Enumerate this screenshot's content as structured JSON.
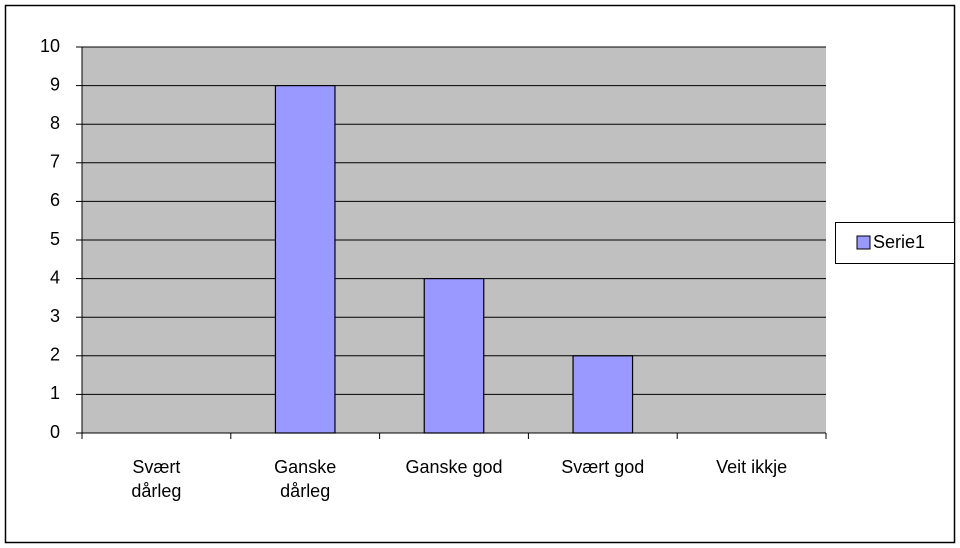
{
  "chart_data": {
    "type": "bar",
    "categories": [
      "Svært\ndårleg",
      "Ganske\ndårleg",
      "Ganske god",
      "Svært god",
      "Veit ikkje"
    ],
    "series": [
      {
        "name": "Serie1",
        "color": "#9999ff",
        "values": [
          0,
          9,
          4,
          2,
          0
        ]
      }
    ],
    "ylim": [
      0,
      10
    ],
    "yticks": [
      0,
      1,
      2,
      3,
      4,
      5,
      6,
      7,
      8,
      9,
      10
    ],
    "grid": true,
    "legend": "right"
  }
}
